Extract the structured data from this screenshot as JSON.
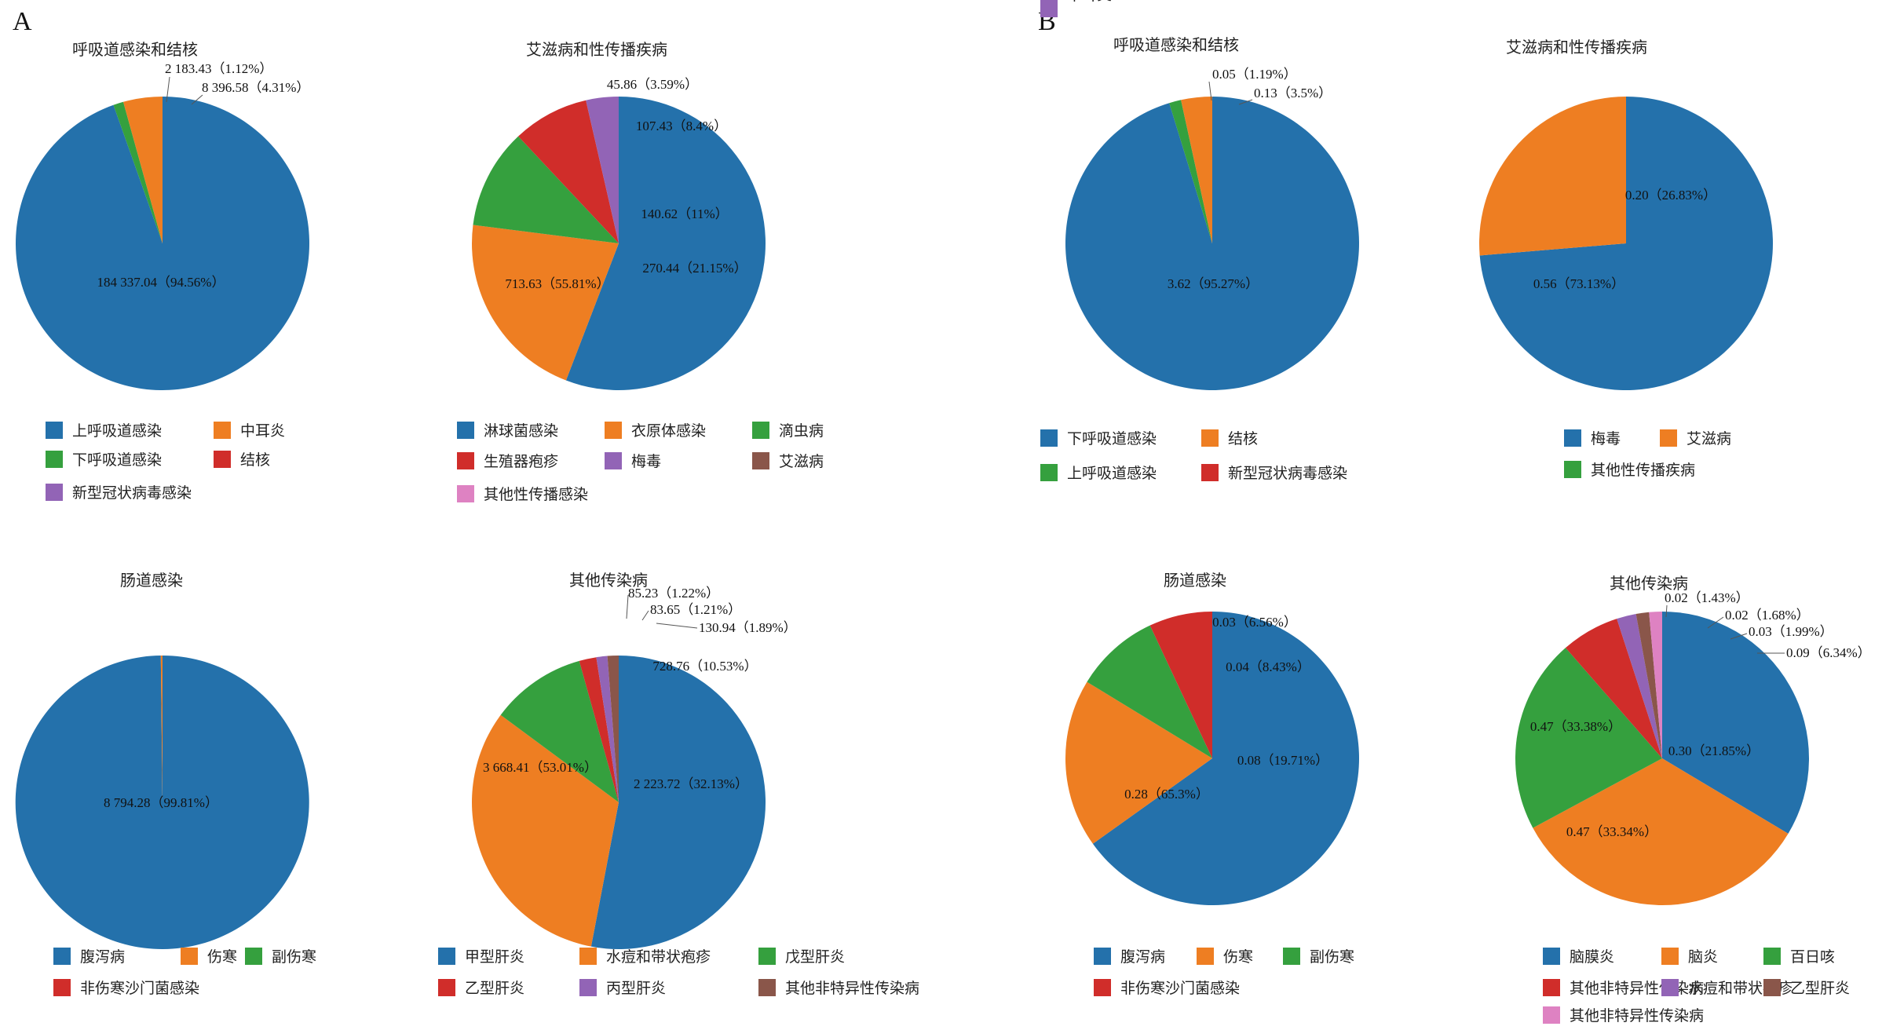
{
  "colors": {
    "blue": "#2471ab",
    "orange": "#ee7e22",
    "green": "#35a03e",
    "red": "#d02d2a",
    "purple": "#9264b6",
    "brown": "#8a564a",
    "pink": "#de82c2"
  },
  "panels": [
    {
      "label": "A"
    },
    {
      "label": "B"
    }
  ],
  "chart_data": [
    {
      "type": "pie",
      "panel": "A",
      "title": "呼吸道感染和结核",
      "slices": [
        {
          "name": "上呼吸道感染",
          "value": 184337.04,
          "percent": 94.56,
          "label": "184 337.04（94.56%）",
          "color": "blue"
        },
        {
          "name": "下呼吸道感染",
          "value": 2183.43,
          "percent": 1.12,
          "label": "2 183.43（1.12%）",
          "color": "green"
        },
        {
          "name": "中耳炎",
          "value": 8396.58,
          "percent": 4.31,
          "label": "8 396.58（4.31%）",
          "color": "orange"
        },
        {
          "name": "结核",
          "value": 0,
          "percent": 0,
          "label": "",
          "color": "red"
        },
        {
          "name": "新型冠状病毒感染",
          "value": 0,
          "percent": 0,
          "label": "",
          "color": "purple"
        }
      ],
      "legend": [
        {
          "name": "上呼吸道感染",
          "color": "blue"
        },
        {
          "name": "中耳炎",
          "color": "orange"
        },
        {
          "name": "下呼吸道感染",
          "color": "green"
        },
        {
          "name": "结核",
          "color": "red"
        },
        {
          "name": "新型冠状病毒感染",
          "color": "purple"
        }
      ]
    },
    {
      "type": "pie",
      "panel": "A",
      "title": "艾滋病和性传播疾病",
      "slices": [
        {
          "name": "淋球菌感染",
          "value": 713.63,
          "percent": 55.81,
          "label": "713.63（55.81%）",
          "color": "blue"
        },
        {
          "name": "衣原体感染",
          "value": 270.44,
          "percent": 21.15,
          "label": "270.44（21.15%）",
          "color": "orange"
        },
        {
          "name": "滴虫病",
          "value": 140.62,
          "percent": 11,
          "label": "140.62（11%）",
          "color": "green"
        },
        {
          "name": "生殖器疱疹",
          "value": 107.43,
          "percent": 8.4,
          "label": "107.43（8.4%）",
          "color": "red"
        },
        {
          "name": "梅毒",
          "value": 45.86,
          "percent": 3.59,
          "label": "45.86（3.59%）",
          "color": "purple"
        },
        {
          "name": "艾滋病",
          "value": 0,
          "percent": 0,
          "label": "",
          "color": "brown"
        },
        {
          "name": "其他性传播感染",
          "value": 0,
          "percent": 0,
          "label": "",
          "color": "pink"
        }
      ],
      "legend": [
        {
          "name": "淋球菌感染",
          "color": "blue"
        },
        {
          "name": "衣原体感染",
          "color": "orange"
        },
        {
          "name": "滴虫病",
          "color": "green"
        },
        {
          "name": "生殖器疱疹",
          "color": "red"
        },
        {
          "name": "梅毒",
          "color": "purple"
        },
        {
          "name": "艾滋病",
          "color": "brown"
        },
        {
          "name": "其他性传播感染",
          "color": "pink"
        }
      ]
    },
    {
      "type": "pie",
      "panel": "A",
      "title": "肠道感染",
      "slices": [
        {
          "name": "腹泻病",
          "value": 8794.28,
          "percent": 99.81,
          "label": "8 794.28（99.81%）",
          "color": "blue"
        },
        {
          "name": "伤寒",
          "value": 16.7,
          "percent": 0.19,
          "label": "",
          "color": "orange"
        },
        {
          "name": "副伤寒",
          "value": 0,
          "percent": 0,
          "label": "",
          "color": "green"
        },
        {
          "name": "非伤寒沙门菌感染",
          "value": 0,
          "percent": 0,
          "label": "",
          "color": "red"
        }
      ],
      "legend": [
        {
          "name": "腹泻病",
          "color": "blue"
        },
        {
          "name": "伤寒",
          "color": "orange"
        },
        {
          "name": "副伤寒",
          "color": "green"
        },
        {
          "name": "非伤寒沙门菌感染",
          "color": "red"
        }
      ]
    },
    {
      "type": "pie",
      "panel": "A",
      "title": "其他传染病",
      "slices": [
        {
          "name": "甲型肝炎",
          "value": 3668.41,
          "percent": 53.01,
          "label": "3 668.41（53.01%）",
          "color": "blue"
        },
        {
          "name": "水痘和带状疱疹",
          "value": 2223.72,
          "percent": 32.13,
          "label": "2 223.72（32.13%）",
          "color": "orange"
        },
        {
          "name": "戊型肝炎",
          "value": 728.76,
          "percent": 10.53,
          "label": "728.76（10.53%）",
          "color": "green"
        },
        {
          "name": "乙型肝炎",
          "value": 130.94,
          "percent": 1.89,
          "label": "130.94（1.89%）",
          "color": "red"
        },
        {
          "name": "丙型肝炎",
          "value": 83.65,
          "percent": 1.21,
          "label": "83.65（1.21%）",
          "color": "purple"
        },
        {
          "name": "其他非特异性传染病",
          "value": 85.23,
          "percent": 1.22,
          "label": "85.23（1.22%）",
          "color": "brown"
        }
      ],
      "legend": [
        {
          "name": "甲型肝炎",
          "color": "blue"
        },
        {
          "name": "水痘和带状疱疹",
          "color": "orange"
        },
        {
          "name": "戊型肝炎",
          "color": "green"
        },
        {
          "name": "乙型肝炎",
          "color": "red"
        },
        {
          "name": "丙型肝炎",
          "color": "purple"
        },
        {
          "name": "其他非特异性传染病",
          "color": "brown"
        }
      ]
    },
    {
      "type": "pie",
      "panel": "B",
      "title": "呼吸道感染和结核",
      "slices": [
        {
          "name": "下呼吸道感染",
          "value": 3.62,
          "percent": 95.27,
          "label": "3.62（95.27%）",
          "color": "blue"
        },
        {
          "name": "上呼吸道感染",
          "value": 0.05,
          "percent": 1.19,
          "label": "0.05（1.19%）",
          "color": "green"
        },
        {
          "name": "结核",
          "value": 0.13,
          "percent": 3.5,
          "label": "0.13（3.5%）",
          "color": "orange"
        },
        {
          "name": "新型冠状病毒感染",
          "value": 0,
          "percent": 0,
          "label": "",
          "color": "red"
        },
        {
          "name": "中耳炎",
          "value": 0,
          "percent": 0,
          "label": "",
          "color": "purple"
        }
      ],
      "legend": [
        {
          "name": "下呼吸道感染",
          "color": "blue"
        },
        {
          "name": "结核",
          "color": "orange"
        },
        {
          "name": "上呼吸道感染",
          "color": "green"
        },
        {
          "name": "新型冠状病毒感染",
          "color": "red"
        },
        {
          "name": "中耳炎",
          "color": "purple"
        }
      ]
    },
    {
      "type": "pie",
      "panel": "B",
      "title": "艾滋病和性传播疾病",
      "slices": [
        {
          "name": "梅毒",
          "value": 0.56,
          "percent": 73.13,
          "label": "0.56（73.13%）",
          "color": "blue"
        },
        {
          "name": "艾滋病",
          "value": 0.2,
          "percent": 26.83,
          "label": "0.20（26.83%）",
          "color": "orange"
        },
        {
          "name": "其他性传播疾病",
          "value": 0,
          "percent": 0,
          "label": "",
          "color": "green"
        }
      ],
      "legend": [
        {
          "name": "梅毒",
          "color": "blue"
        },
        {
          "name": "艾滋病",
          "color": "orange"
        },
        {
          "name": "其他性传播疾病",
          "color": "green"
        }
      ]
    },
    {
      "type": "pie",
      "panel": "B",
      "title": "肠道感染",
      "slices": [
        {
          "name": "腹泻病",
          "value": 0.28,
          "percent": 65.3,
          "label": "0.28（65.3%）",
          "color": "blue"
        },
        {
          "name": "伤寒",
          "value": 0.08,
          "percent": 19.71,
          "label": "0.08（19.71%）",
          "color": "orange"
        },
        {
          "name": "副伤寒",
          "value": 0.04,
          "percent": 8.43,
          "label": "0.04（8.43%）",
          "color": "green"
        },
        {
          "name": "非伤寒沙门菌感染",
          "value": 0.03,
          "percent": 6.56,
          "label": "0.03（6.56%）",
          "color": "red"
        }
      ],
      "legend": [
        {
          "name": "腹泻病",
          "color": "blue"
        },
        {
          "name": "伤寒",
          "color": "orange"
        },
        {
          "name": "副伤寒",
          "color": "green"
        },
        {
          "name": "非伤寒沙门菌感染",
          "color": "red"
        }
      ]
    },
    {
      "type": "pie",
      "panel": "B",
      "title": "其他传染病",
      "slices": [
        {
          "name": "脑膜炎",
          "value": 0.47,
          "percent": 33.38,
          "label": "0.47（33.38%）",
          "color": "blue"
        },
        {
          "name": "脑炎",
          "value": 0.47,
          "percent": 33.34,
          "label": "0.47（33.34%）",
          "color": "orange"
        },
        {
          "name": "百日咳",
          "value": 0.3,
          "percent": 21.85,
          "label": "0.30（21.85%）",
          "color": "green"
        },
        {
          "name": "其他非特异性传染病",
          "value": 0.09,
          "percent": 6.34,
          "label": "0.09（6.34%）",
          "color": "red"
        },
        {
          "name": "水痘和带状疱疹",
          "value": 0.03,
          "percent": 1.99,
          "label": "0.03（1.99%）",
          "color": "purple"
        },
        {
          "name": "乙型肝炎",
          "value": 0.02,
          "percent": 1.68,
          "label": "0.02（1.68%）",
          "color": "brown"
        },
        {
          "name": "其他非特异性传染病",
          "value": 0.02,
          "percent": 1.43,
          "label": "0.02（1.43%）",
          "color": "pink"
        }
      ],
      "legend": [
        {
          "name": "脑膜炎",
          "color": "blue"
        },
        {
          "name": "脑炎",
          "color": "orange"
        },
        {
          "name": "百日咳",
          "color": "green"
        },
        {
          "name": "其他非特异性传染病",
          "color": "red"
        },
        {
          "name": "水痘和带状疱疹",
          "color": "purple"
        },
        {
          "name": "乙型肝炎",
          "color": "brown"
        },
        {
          "name": "其他非特异性传染病",
          "color": "pink"
        }
      ]
    }
  ]
}
